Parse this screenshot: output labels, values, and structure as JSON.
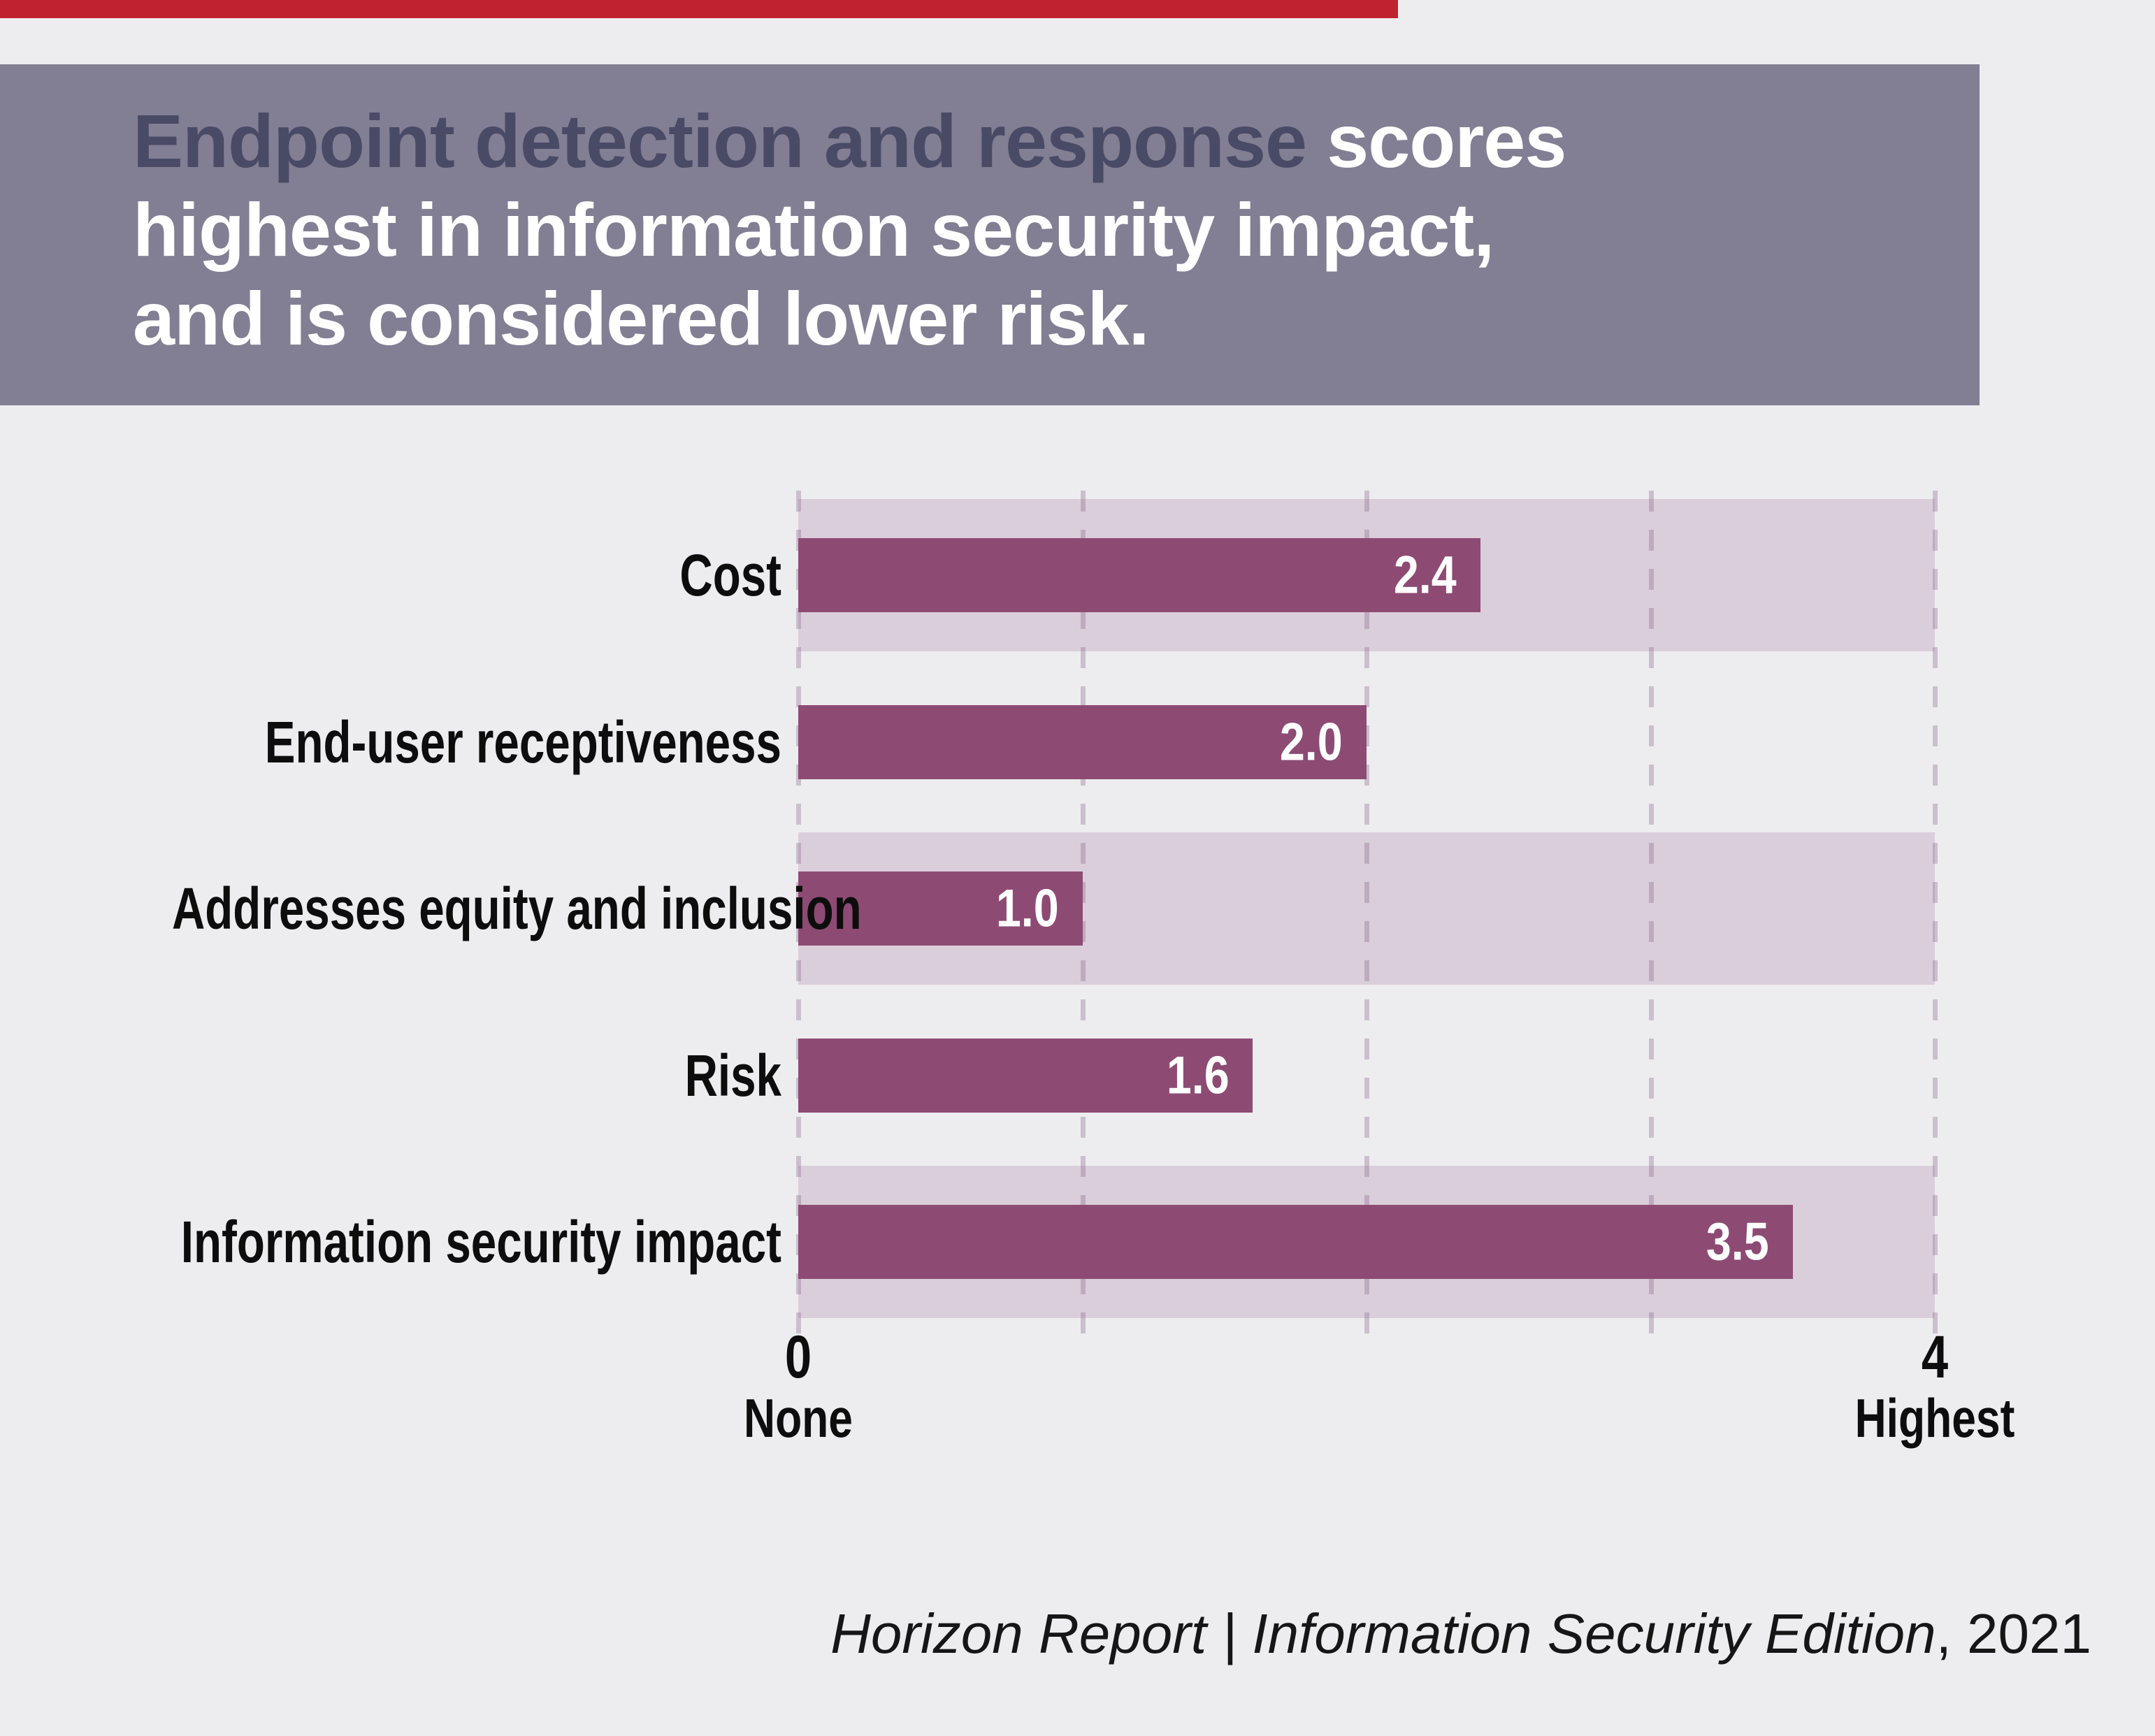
{
  "accent": {
    "red_bar_color": "#C0222F"
  },
  "header": {
    "bg_color": "#827E93",
    "title_emphasis": "Endpoint detection and response",
    "title_line1_rest": " scores",
    "title_line2": "highest in information security impact,",
    "title_line3": "and is considered lower risk.",
    "emphasis_color": "#494A66",
    "text_color": "#FFFFFF"
  },
  "chart_data": {
    "type": "bar",
    "orientation": "horizontal",
    "title": "Endpoint detection and response scores highest in information security impact, and is considered lower risk.",
    "categories": [
      "Cost",
      "End-user receptiveness",
      "Addresses equity and inclusion",
      "Risk",
      "Information security impact"
    ],
    "values": [
      2.4,
      2.0,
      1.0,
      1.6,
      3.5
    ],
    "value_labels": [
      "2.4",
      "2.0",
      "1.0",
      "1.6",
      "3.5"
    ],
    "xlim": [
      0,
      4
    ],
    "x_ticks": [
      0,
      1,
      2,
      3,
      4
    ],
    "axis_end_labels": {
      "left_value": "0",
      "left_word": "None",
      "right_value": "4",
      "right_word": "Highest"
    },
    "grid": "dashed-vertical",
    "legend": "none",
    "banded_rows": [
      0,
      2,
      4
    ],
    "bar_color": "#8D4B74",
    "band_color": "#DBCEDB",
    "gridline_color": "rgba(125,85,125,0.30)",
    "value_label_color": "#FFFFFF",
    "category_label_color": "#0D0D0D",
    "background": "#EDEDF0"
  },
  "footer": {
    "credit_italic": "Horizon Report | Information Security Edition",
    "credit_regular": ", 2021"
  }
}
